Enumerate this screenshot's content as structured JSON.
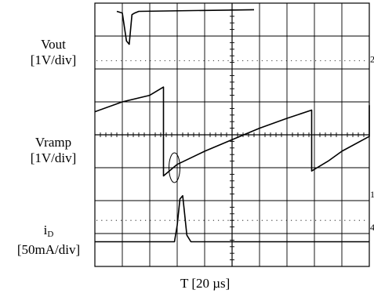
{
  "chart_data": {
    "type": "line",
    "title": "",
    "xlabel": "T [20 µs]",
    "grid": true,
    "divisions": {
      "x": 10,
      "y": 8
    },
    "channel_markers": [
      "2",
      "1",
      "4"
    ],
    "series": [
      {
        "label_lines": [
          "Vout",
          "[1V/div]"
        ],
        "x": [
          -5.0,
          0.8,
          0.8,
          1.0,
          1.15,
          1.25,
          1.35,
          1.45,
          1.6,
          5.8,
          5.8,
          10.0
        ],
        "y": [
          null,
          null,
          1.5,
          1.45,
          0.6,
          0.5,
          1.4,
          1.45,
          1.5,
          1.55,
          null,
          null
        ]
      },
      {
        "label_lines": [
          "Vramp",
          "[1V/div]"
        ],
        "x": [
          0.0,
          1.0,
          2.0,
          2.5,
          2.5,
          3.0,
          4.0,
          5.0,
          6.0,
          7.0,
          7.9,
          7.9,
          8.5,
          9.0,
          10.0,
          11.0,
          12.0,
          13.0
        ],
        "y": [
          0.7,
          1.0,
          1.2,
          1.45,
          -1.25,
          -0.9,
          -0.5,
          -0.15,
          0.2,
          0.5,
          0.75,
          -1.1,
          -0.8,
          -0.5,
          -0.05,
          0.3,
          0.55,
          0.9
        ]
      },
      {
        "label_lines": [
          "i",
          "D",
          "[50mA/div]"
        ],
        "x": [
          0.0,
          2.6,
          2.9,
          3.0,
          3.1,
          3.2,
          3.25,
          3.35,
          3.5,
          3.6,
          13.0
        ],
        "y": [
          0.0,
          0.0,
          0.0,
          0.5,
          1.3,
          1.4,
          1.0,
          0.2,
          0.0,
          0.0,
          0.0
        ]
      }
    ]
  }
}
